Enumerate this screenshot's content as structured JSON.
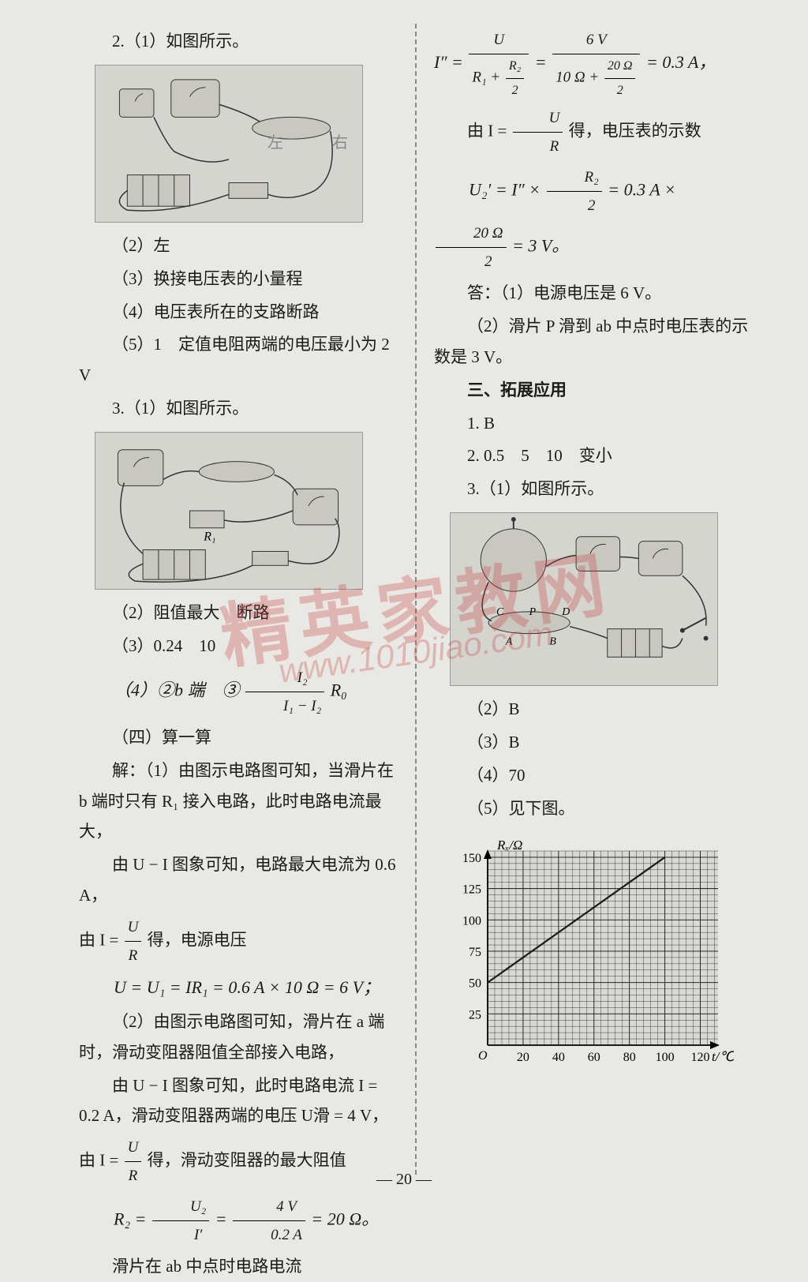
{
  "left": {
    "l1": "2.（1）如图所示。",
    "circuit1_label_left": "左",
    "circuit1_label_right": "右",
    "l2": "（2）左",
    "l3": "（3）换接电压表的小量程",
    "l4": "（4）电压表所在的支路断路",
    "l5": "（5）1　定值电阻两端的电压最小为 2 V",
    "l6": "3.（1）如图所示。",
    "l7": "（2）阻值最大　断路",
    "l8": "（3）0.24　10",
    "l9a": "（4）②b 端　③",
    "l9_num": "I₂",
    "l9_den": "I₁ − I₂",
    "l9b": "R₀",
    "l10": "（四）算一算",
    "l11": "解：（1）由图示电路图可知，当滑片在 b 端时只有 R₁ 接入电路，此时电路电流最大，",
    "l12": "由 U − I 图象可知，电路最大电流为 0.6 A，",
    "l13a": "由 I =",
    "l13_num": "U",
    "l13_den": "R",
    "l13b": "得，电源电压",
    "l14": "U = U₁ = IR₁ = 0.6 A × 10 Ω = 6 V；",
    "l15": "（2）由图示电路图可知，滑片在 a 端时，滑动变阻器阻值全部接入电路，",
    "l16": "由 U − I 图象可知，此时电路电流 I = 0.2 A，滑动变阻器两端的电压 U滑 = 4 V，",
    "l17a": "由 I =",
    "l17_num": "U",
    "l17_den": "R",
    "l17b": "得，滑动变阻器的最大阻值",
    "l18a": "R₂ =",
    "l18_num1": "U₂",
    "l18_den1": "I′",
    "l18_eq": " = ",
    "l18_num2": "4 V",
    "l18_den2": "0.2 A",
    "l18b": " = 20 Ω。",
    "l19": "滑片在 ab 中点时电路电流"
  },
  "right": {
    "r1a": "I″ =",
    "r1_num1": "U",
    "r1_den1a": "R₁ + ",
    "r1_den1_num": "R₂",
    "r1_den1_den": "2",
    "r1_eq": " = ",
    "r1_num2": "6 V",
    "r1_den2a": "10 Ω + ",
    "r1_den2_num": "20 Ω",
    "r1_den2_den": "2",
    "r1b": " = 0.3 A，",
    "r2a": "由 I =",
    "r2_num": "U",
    "r2_den": "R",
    "r2b": "得，电压表的示数",
    "r3a": "U₂′ = I″ × ",
    "r3_num": "R₂",
    "r3_den": "2",
    "r3_mid": " = 0.3 A × ",
    "r3_num2": "20 Ω",
    "r3_den2": "2",
    "r3b": " = 3 V。",
    "r4": "答：（1）电源电压是 6 V。",
    "r5": "（2）滑片 P 滑到 ab 中点时电压表的示数是 3 V。",
    "r6": "三、拓展应用",
    "r7": "1. B",
    "r8": "2. 0.5　5　10　变小",
    "r9": "3.（1）如图所示。",
    "r10": "（2）B",
    "r11": "（3）B",
    "r12": "（4）70",
    "r13": "（5）见下图。"
  },
  "chart": {
    "y_label": "Rₓ/Ω",
    "x_label": "t/℃",
    "y_ticks": [
      25,
      50,
      75,
      100,
      125,
      150
    ],
    "x_ticks": [
      20,
      40,
      60,
      80,
      100,
      120
    ],
    "origin": "O",
    "line_points": [
      [
        0,
        50
      ],
      [
        100,
        150
      ]
    ],
    "grid_color": "#1a1a1a",
    "line_color": "#1a1a1a",
    "bg_color": "#d8d8d4",
    "ylim": [
      0,
      155
    ],
    "xlim": [
      0,
      130
    ],
    "x_minor_step": 4,
    "y_minor_step": 5,
    "x_major_step": 20,
    "y_major_step": 25
  },
  "watermark_main": "精英家教网",
  "watermark_url": "www.1010jiao.com",
  "page_number": "— 20 —"
}
